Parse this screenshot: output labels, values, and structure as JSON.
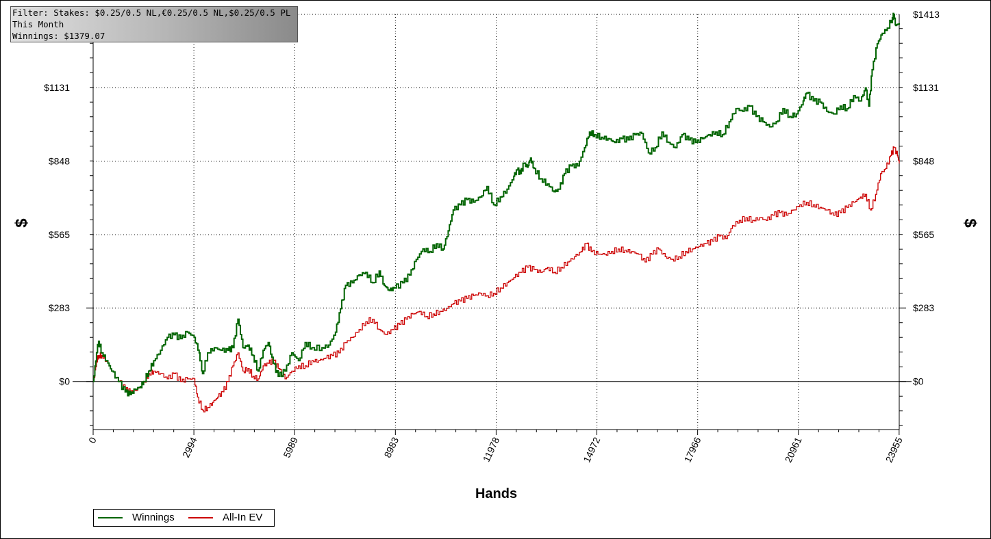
{
  "info": {
    "filter": "Filter: Stakes: $0.25/0.5 NL,€0.25/0.5 NL,$0.25/0.5 PL",
    "period": "This Month",
    "winnings": "Winnings: $1379.07"
  },
  "legend": {
    "items": [
      {
        "label": "Winnings",
        "color": "#006400"
      },
      {
        "label": "All-In EV",
        "color": "#cc0000"
      }
    ]
  },
  "chart_data": {
    "type": "line",
    "xlabel": "Hands",
    "ylabel": "$",
    "y2label": "$",
    "xlim": [
      0,
      23955
    ],
    "ylim": [
      -185,
      1413
    ],
    "x_ticks": [
      0,
      2994,
      5989,
      8983,
      11978,
      14972,
      17966,
      20961,
      23955
    ],
    "x_tick_labels": [
      "0",
      "2994",
      "5989",
      "8983",
      "11978",
      "14972",
      "17966",
      "20961",
      "23955"
    ],
    "y_ticks": [
      0,
      283,
      565,
      848,
      1131,
      1413
    ],
    "y_tick_labels": [
      "$0",
      "$283",
      "$565",
      "$848",
      "$1131",
      "$1413"
    ],
    "grid": true,
    "legend_position": "bottom-left",
    "series": [
      {
        "name": "Winnings",
        "color": "#006400",
        "points": [
          [
            0,
            0
          ],
          [
            100,
            110
          ],
          [
            160,
            155
          ],
          [
            260,
            110
          ],
          [
            400,
            80
          ],
          [
            550,
            40
          ],
          [
            750,
            0
          ],
          [
            950,
            -40
          ],
          [
            1100,
            -50
          ],
          [
            1250,
            -30
          ],
          [
            1400,
            -20
          ],
          [
            1500,
            0
          ],
          [
            1650,
            40
          ],
          [
            1800,
            80
          ],
          [
            2000,
            120
          ],
          [
            2200,
            170
          ],
          [
            2400,
            180
          ],
          [
            2600,
            165
          ],
          [
            2800,
            190
          ],
          [
            3000,
            170
          ],
          [
            3150,
            110
          ],
          [
            3250,
            30
          ],
          [
            3400,
            110
          ],
          [
            3600,
            130
          ],
          [
            3800,
            120
          ],
          [
            4000,
            120
          ],
          [
            4150,
            130
          ],
          [
            4300,
            240
          ],
          [
            4450,
            130
          ],
          [
            4600,
            140
          ],
          [
            4750,
            100
          ],
          [
            4900,
            40
          ],
          [
            5050,
            120
          ],
          [
            5200,
            150
          ],
          [
            5350,
            70
          ],
          [
            5500,
            20
          ],
          [
            5700,
            40
          ],
          [
            5900,
            110
          ],
          [
            6100,
            80
          ],
          [
            6300,
            150
          ],
          [
            6500,
            130
          ],
          [
            6800,
            130
          ],
          [
            7000,
            140
          ],
          [
            7200,
            190
          ],
          [
            7350,
            280
          ],
          [
            7500,
            370
          ],
          [
            7700,
            380
          ],
          [
            7900,
            410
          ],
          [
            8100,
            420
          ],
          [
            8300,
            380
          ],
          [
            8500,
            425
          ],
          [
            8650,
            370
          ],
          [
            8800,
            350
          ],
          [
            8950,
            360
          ],
          [
            9200,
            380
          ],
          [
            9400,
            410
          ],
          [
            9600,
            470
          ],
          [
            9800,
            510
          ],
          [
            10000,
            500
          ],
          [
            10200,
            530
          ],
          [
            10400,
            510
          ],
          [
            10550,
            580
          ],
          [
            10700,
            660
          ],
          [
            10900,
            680
          ],
          [
            11100,
            700
          ],
          [
            11300,
            690
          ],
          [
            11500,
            710
          ],
          [
            11700,
            750
          ],
          [
            11900,
            680
          ],
          [
            12100,
            710
          ],
          [
            12300,
            740
          ],
          [
            12500,
            790
          ],
          [
            12600,
            815
          ],
          [
            12700,
            800
          ],
          [
            12800,
            840
          ],
          [
            12900,
            825
          ],
          [
            13000,
            860
          ],
          [
            13100,
            820
          ],
          [
            13300,
            780
          ],
          [
            13500,
            760
          ],
          [
            13700,
            730
          ],
          [
            13850,
            740
          ],
          [
            14000,
            800
          ],
          [
            14200,
            830
          ],
          [
            14400,
            830
          ],
          [
            14600,
            900
          ],
          [
            14750,
            960
          ],
          [
            14900,
            950
          ],
          [
            15100,
            940
          ],
          [
            15300,
            935
          ],
          [
            15500,
            920
          ],
          [
            15700,
            935
          ],
          [
            15900,
            930
          ],
          [
            16100,
            950
          ],
          [
            16300,
            955
          ],
          [
            16500,
            880
          ],
          [
            16700,
            900
          ],
          [
            16900,
            960
          ],
          [
            17100,
            920
          ],
          [
            17300,
            900
          ],
          [
            17500,
            950
          ],
          [
            17700,
            930
          ],
          [
            17900,
            920
          ],
          [
            18100,
            935
          ],
          [
            18300,
            950
          ],
          [
            18500,
            960
          ],
          [
            18700,
            950
          ],
          [
            18900,
            1000
          ],
          [
            19100,
            1050
          ],
          [
            19300,
            1040
          ],
          [
            19500,
            1060
          ],
          [
            19700,
            1020
          ],
          [
            19900,
            1000
          ],
          [
            20100,
            980
          ],
          [
            20300,
            1000
          ],
          [
            20500,
            1050
          ],
          [
            20700,
            1020
          ],
          [
            20900,
            1030
          ],
          [
            21100,
            1080
          ],
          [
            21200,
            1110
          ],
          [
            21400,
            1080
          ],
          [
            21600,
            1075
          ],
          [
            21800,
            1040
          ],
          [
            22000,
            1030
          ],
          [
            22200,
            1060
          ],
          [
            22400,
            1050
          ],
          [
            22600,
            1100
          ],
          [
            22800,
            1080
          ],
          [
            22950,
            1130
          ],
          [
            23050,
            1060
          ],
          [
            23150,
            1200
          ],
          [
            23300,
            1300
          ],
          [
            23450,
            1340
          ],
          [
            23600,
            1360
          ],
          [
            23750,
            1400
          ],
          [
            23800,
            1413
          ],
          [
            23850,
            1370
          ],
          [
            23955,
            1379
          ]
        ]
      },
      {
        "name": "All-In EV",
        "color": "#cc0000",
        "points": [
          [
            0,
            0
          ],
          [
            100,
            80
          ],
          [
            160,
            100
          ],
          [
            260,
            100
          ],
          [
            400,
            80
          ],
          [
            550,
            40
          ],
          [
            750,
            0
          ],
          [
            950,
            -30
          ],
          [
            1100,
            -40
          ],
          [
            1250,
            -35
          ],
          [
            1400,
            -20
          ],
          [
            1500,
            0
          ],
          [
            1650,
            30
          ],
          [
            1800,
            40
          ],
          [
            2000,
            30
          ],
          [
            2200,
            10
          ],
          [
            2400,
            30
          ],
          [
            2600,
            0
          ],
          [
            2800,
            10
          ],
          [
            3000,
            10
          ],
          [
            3100,
            -60
          ],
          [
            3250,
            -110
          ],
          [
            3400,
            -100
          ],
          [
            3550,
            -80
          ],
          [
            3700,
            -60
          ],
          [
            3850,
            -40
          ],
          [
            4000,
            0
          ],
          [
            4150,
            60
          ],
          [
            4300,
            110
          ],
          [
            4450,
            40
          ],
          [
            4600,
            50
          ],
          [
            4750,
            20
          ],
          [
            4900,
            10
          ],
          [
            5050,
            60
          ],
          [
            5200,
            70
          ],
          [
            5350,
            80
          ],
          [
            5500,
            50
          ],
          [
            5700,
            10
          ],
          [
            5900,
            40
          ],
          [
            6100,
            60
          ],
          [
            6300,
            60
          ],
          [
            6500,
            80
          ],
          [
            6700,
            80
          ],
          [
            6900,
            90
          ],
          [
            7100,
            100
          ],
          [
            7300,
            110
          ],
          [
            7500,
            150
          ],
          [
            7700,
            170
          ],
          [
            7900,
            200
          ],
          [
            8100,
            230
          ],
          [
            8300,
            240
          ],
          [
            8500,
            200
          ],
          [
            8700,
            180
          ],
          [
            8900,
            200
          ],
          [
            9100,
            220
          ],
          [
            9300,
            240
          ],
          [
            9500,
            260
          ],
          [
            9700,
            270
          ],
          [
            9900,
            250
          ],
          [
            10100,
            260
          ],
          [
            10300,
            270
          ],
          [
            10500,
            280
          ],
          [
            10700,
            300
          ],
          [
            10900,
            310
          ],
          [
            11100,
            320
          ],
          [
            11300,
            330
          ],
          [
            11500,
            340
          ],
          [
            11700,
            330
          ],
          [
            11900,
            340
          ],
          [
            12100,
            360
          ],
          [
            12300,
            380
          ],
          [
            12500,
            400
          ],
          [
            12700,
            420
          ],
          [
            12900,
            440
          ],
          [
            13100,
            430
          ],
          [
            13300,
            420
          ],
          [
            13500,
            440
          ],
          [
            13700,
            420
          ],
          [
            13900,
            440
          ],
          [
            14100,
            460
          ],
          [
            14300,
            480
          ],
          [
            14500,
            500
          ],
          [
            14650,
            530
          ],
          [
            14800,
            500
          ],
          [
            15000,
            490
          ],
          [
            15200,
            490
          ],
          [
            15400,
            500
          ],
          [
            15600,
            510
          ],
          [
            15800,
            505
          ],
          [
            16000,
            500
          ],
          [
            16200,
            490
          ],
          [
            16400,
            460
          ],
          [
            16600,
            490
          ],
          [
            16800,
            510
          ],
          [
            17000,
            480
          ],
          [
            17200,
            470
          ],
          [
            17400,
            480
          ],
          [
            17600,
            500
          ],
          [
            17800,
            510
          ],
          [
            18000,
            520
          ],
          [
            18200,
            530
          ],
          [
            18400,
            540
          ],
          [
            18600,
            560
          ],
          [
            18800,
            550
          ],
          [
            19000,
            600
          ],
          [
            19200,
            620
          ],
          [
            19400,
            630
          ],
          [
            19600,
            620
          ],
          [
            19800,
            630
          ],
          [
            20000,
            620
          ],
          [
            20200,
            640
          ],
          [
            20400,
            650
          ],
          [
            20600,
            640
          ],
          [
            20800,
            660
          ],
          [
            21000,
            680
          ],
          [
            21200,
            690
          ],
          [
            21400,
            680
          ],
          [
            21600,
            670
          ],
          [
            21800,
            660
          ],
          [
            22000,
            640
          ],
          [
            22200,
            650
          ],
          [
            22400,
            670
          ],
          [
            22600,
            690
          ],
          [
            22800,
            710
          ],
          [
            22950,
            720
          ],
          [
            23100,
            660
          ],
          [
            23250,
            720
          ],
          [
            23400,
            800
          ],
          [
            23550,
            820
          ],
          [
            23700,
            870
          ],
          [
            23800,
            900
          ],
          [
            23900,
            870
          ],
          [
            23955,
            840
          ]
        ]
      }
    ]
  }
}
